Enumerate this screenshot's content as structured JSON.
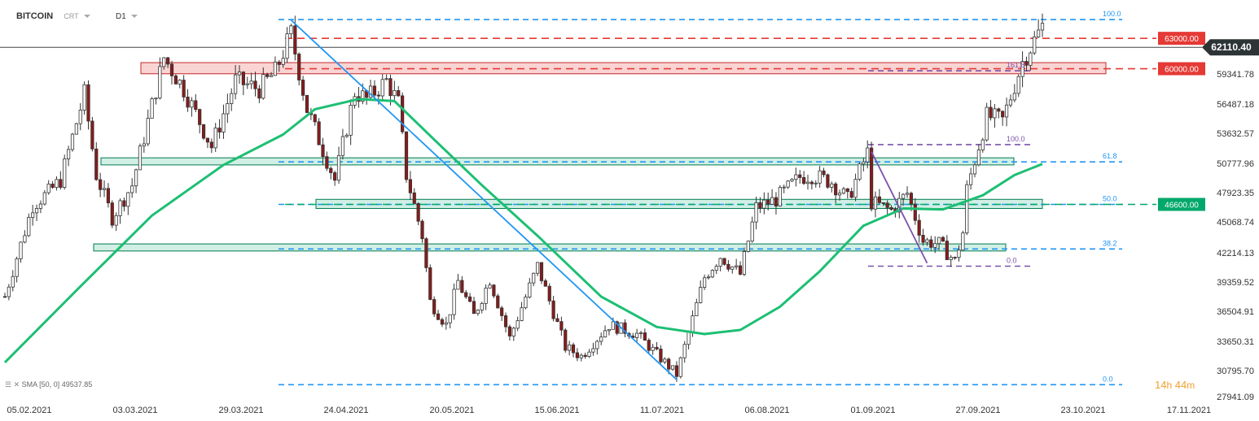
{
  "header": {
    "symbol": "BITCOIN",
    "source": "CRT",
    "timeframe": "D1"
  },
  "indicator": {
    "label": "SMA [50, 0]",
    "value": "49537.85"
  },
  "countdown": {
    "hours": "14",
    "h_unit": "h",
    "minutes": "44",
    "m_unit": "m"
  },
  "colors": {
    "up": "#ffffff",
    "down": "#8b1a1a",
    "sma": "#1dbf73",
    "trend": "#2196f3",
    "fib": "#2196f3",
    "resistance": "#e53935",
    "support": "#00a86b",
    "fibext": "#7b52ab"
  },
  "chart_data": {
    "type": "candlestick",
    "title": "",
    "ylim": [
      27941.09,
      65500
    ],
    "price_ticks": [
      "59341.78",
      "56487.18",
      "53632.57",
      "50777.96",
      "47923.35",
      "45068.74",
      "42214.13",
      "39359.52",
      "36504.91",
      "33650.31",
      "30795.70",
      "27941.09"
    ],
    "date_ticks": [
      "05.02.2021",
      "03.03.2021",
      "29.03.2021",
      "24.04.2021",
      "20.05.2021",
      "15.06.2021",
      "11.07.2021",
      "06.08.2021",
      "01.09.2021",
      "27.09.2021",
      "23.10.2021",
      "17.11.2021"
    ],
    "current_price": "62110.40",
    "levels": [
      {
        "label": "63000.00",
        "price": 63000,
        "color": "#e53935"
      },
      {
        "label": "60000.00",
        "price": 60000,
        "color": "#e53935"
      },
      {
        "label": "46600.00",
        "price": 46600,
        "color": "#00a86b"
      }
    ],
    "fib_retracement": [
      {
        "label": "100.0",
        "price": 64850
      },
      {
        "label": "61.8",
        "price": 50800
      },
      {
        "label": "50.0",
        "price": 46600
      },
      {
        "label": "38.2",
        "price": 42200
      },
      {
        "label": "0.0",
        "price": 28800
      }
    ],
    "fib_extension": [
      {
        "label": "161.8",
        "price": 59800
      },
      {
        "label": "100.0",
        "price": 52500
      },
      {
        "label": "0.0",
        "price": 40500
      }
    ],
    "zones": [
      {
        "type": "resistance",
        "from": 59500,
        "to": 60600
      },
      {
        "type": "support",
        "from": 50500,
        "to": 51200
      },
      {
        "type": "support",
        "from": 46200,
        "to": 47100
      },
      {
        "type": "support",
        "from": 42000,
        "to": 42700
      }
    ],
    "start_date": "2021-02-01",
    "end_date": "2021-10-20",
    "anchors": [
      [
        "2021-02-01",
        37500
      ],
      [
        "2021-02-08",
        46500
      ],
      [
        "2021-02-12",
        47800
      ],
      [
        "2021-02-15",
        49000
      ],
      [
        "2021-02-21",
        57500
      ],
      [
        "2021-02-24",
        49500
      ],
      [
        "2021-02-28",
        45300
      ],
      [
        "2021-03-05",
        48500
      ],
      [
        "2021-03-13",
        61100
      ],
      [
        "2021-03-18",
        58000
      ],
      [
        "2021-03-25",
        52300
      ],
      [
        "2021-03-31",
        58800
      ],
      [
        "2021-04-06",
        58000
      ],
      [
        "2021-04-10",
        59700
      ],
      [
        "2021-04-14",
        63500
      ],
      [
        "2021-04-18",
        56000
      ],
      [
        "2021-04-25",
        49000
      ],
      [
        "2021-04-30",
        57700
      ],
      [
        "2021-05-03",
        57000
      ],
      [
        "2021-05-08",
        58800
      ],
      [
        "2021-05-11",
        56600
      ],
      [
        "2021-05-13",
        49500
      ],
      [
        "2021-05-17",
        43500
      ],
      [
        "2021-05-19",
        37000
      ],
      [
        "2021-05-23",
        34700
      ],
      [
        "2021-05-26",
        39000
      ],
      [
        "2021-05-30",
        35600
      ],
      [
        "2021-06-03",
        39200
      ],
      [
        "2021-06-08",
        33400
      ],
      [
        "2021-06-15",
        40500
      ],
      [
        "2021-06-22",
        32500
      ],
      [
        "2021-06-26",
        31600
      ],
      [
        "2021-07-03",
        34700
      ],
      [
        "2021-07-10",
        33800
      ],
      [
        "2021-07-20",
        29800
      ],
      [
        "2021-07-27",
        39400
      ],
      [
        "2021-07-31",
        41500
      ],
      [
        "2021-08-05",
        39700
      ],
      [
        "2021-08-09",
        46300
      ],
      [
        "2021-08-14",
        47100
      ],
      [
        "2021-08-20",
        49300
      ],
      [
        "2021-08-23",
        49500
      ],
      [
        "2021-08-28",
        48800
      ],
      [
        "2021-09-01",
        47100
      ],
      [
        "2021-09-06",
        51700
      ],
      [
        "2021-09-07",
        46800
      ],
      [
        "2021-09-12",
        46000
      ],
      [
        "2021-09-16",
        47700
      ],
      [
        "2021-09-20",
        43000
      ],
      [
        "2021-09-24",
        42700
      ],
      [
        "2021-09-28",
        41000
      ],
      [
        "2021-09-30",
        43800
      ],
      [
        "2021-10-01",
        48100
      ],
      [
        "2021-10-06",
        55300
      ],
      [
        "2021-10-10",
        54900
      ],
      [
        "2021-10-15",
        60700
      ],
      [
        "2021-10-20",
        64200
      ]
    ],
    "sma_anchors": [
      [
        "2021-02-01",
        31000
      ],
      [
        "2021-02-20",
        38500
      ],
      [
        "2021-03-10",
        45500
      ],
      [
        "2021-03-28",
        50500
      ],
      [
        "2021-04-12",
        53500
      ],
      [
        "2021-04-20",
        56000
      ],
      [
        "2021-05-01",
        57000
      ],
      [
        "2021-05-10",
        56800
      ],
      [
        "2021-05-20",
        53000
      ],
      [
        "2021-06-01",
        48500
      ],
      [
        "2021-06-15",
        43500
      ],
      [
        "2021-07-01",
        37500
      ],
      [
        "2021-07-15",
        34500
      ],
      [
        "2021-07-27",
        33800
      ],
      [
        "2021-08-05",
        34200
      ],
      [
        "2021-08-15",
        36500
      ],
      [
        "2021-08-25",
        40000
      ],
      [
        "2021-09-05",
        44500
      ],
      [
        "2021-09-15",
        46200
      ],
      [
        "2021-09-25",
        46100
      ],
      [
        "2021-10-05",
        47500
      ],
      [
        "2021-10-13",
        49500
      ],
      [
        "2021-10-20",
        50600
      ]
    ],
    "trend_lines": [
      {
        "from": [
          "2021-04-14",
          64800
        ],
        "to": [
          "2021-07-20",
          29300
        ],
        "color": "#2196f3"
      },
      {
        "from": [
          "2021-09-07",
          51800
        ],
        "to": [
          "2021-09-21",
          40800
        ],
        "color": "#7b52ab"
      }
    ]
  }
}
